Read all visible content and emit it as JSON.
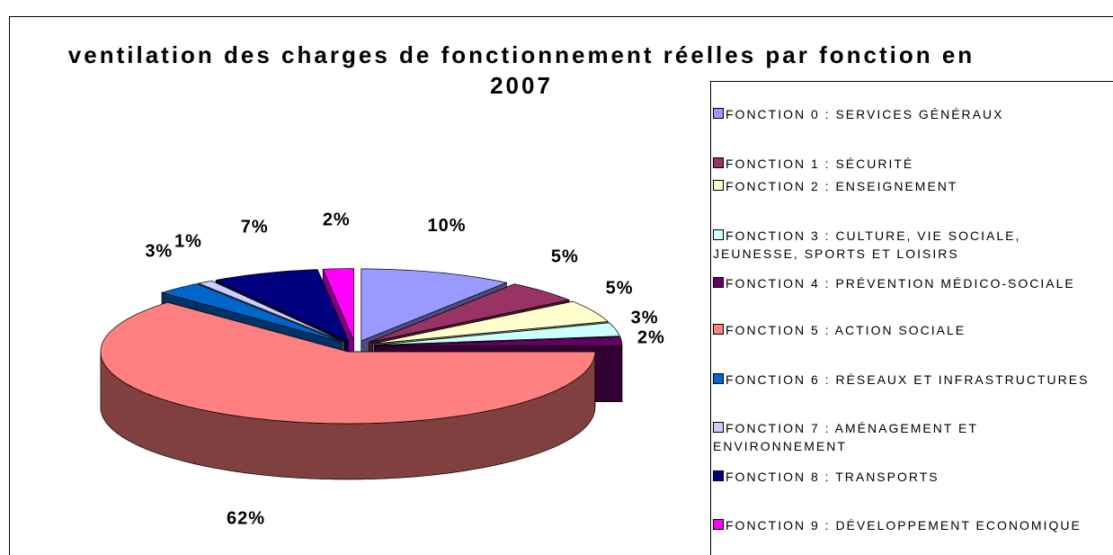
{
  "chart_data": {
    "type": "pie3d",
    "title": "ventilation des charges de fonctionnement réelles par fonction en 2007",
    "categories": [
      "FONCTION 0 : SERVICES GÉNÉRAUX",
      "FONCTION 1 : SÉCURITÉ",
      "FONCTION 2 : ENSEIGNEMENT",
      "FONCTION 3 : CULTURE, VIE SOCIALE, JEUNESSE, SPORTS ET LOISIRS",
      "FONCTION 4 : PRÉVENTION MÉDICO-SOCIALE",
      "FONCTION 5 : ACTION SOCIALE",
      "FONCTION 6 : RÉSEAUX ET INFRASTRUCTURES",
      "FONCTION 7 : AMÉNAGEMENT ET ENVIRONNEMENT",
      "FONCTION 8 : TRANSPORTS",
      "FONCTION 9 : DÉVELOPPEMENT ECONOMIQUE"
    ],
    "values": [
      10,
      5,
      5,
      3,
      2,
      62,
      3,
      1,
      7,
      2
    ],
    "value_labels": [
      "10%",
      "5%",
      "5%",
      "3%",
      "2%",
      "62%",
      "3%",
      "1%",
      "7%",
      "2%"
    ],
    "colors": [
      "#9999ff",
      "#993366",
      "#ffffcc",
      "#ccffff",
      "#660066",
      "#ff8080",
      "#0066cc",
      "#ccccff",
      "#000080",
      "#ff00ff"
    ],
    "legend": "right"
  }
}
